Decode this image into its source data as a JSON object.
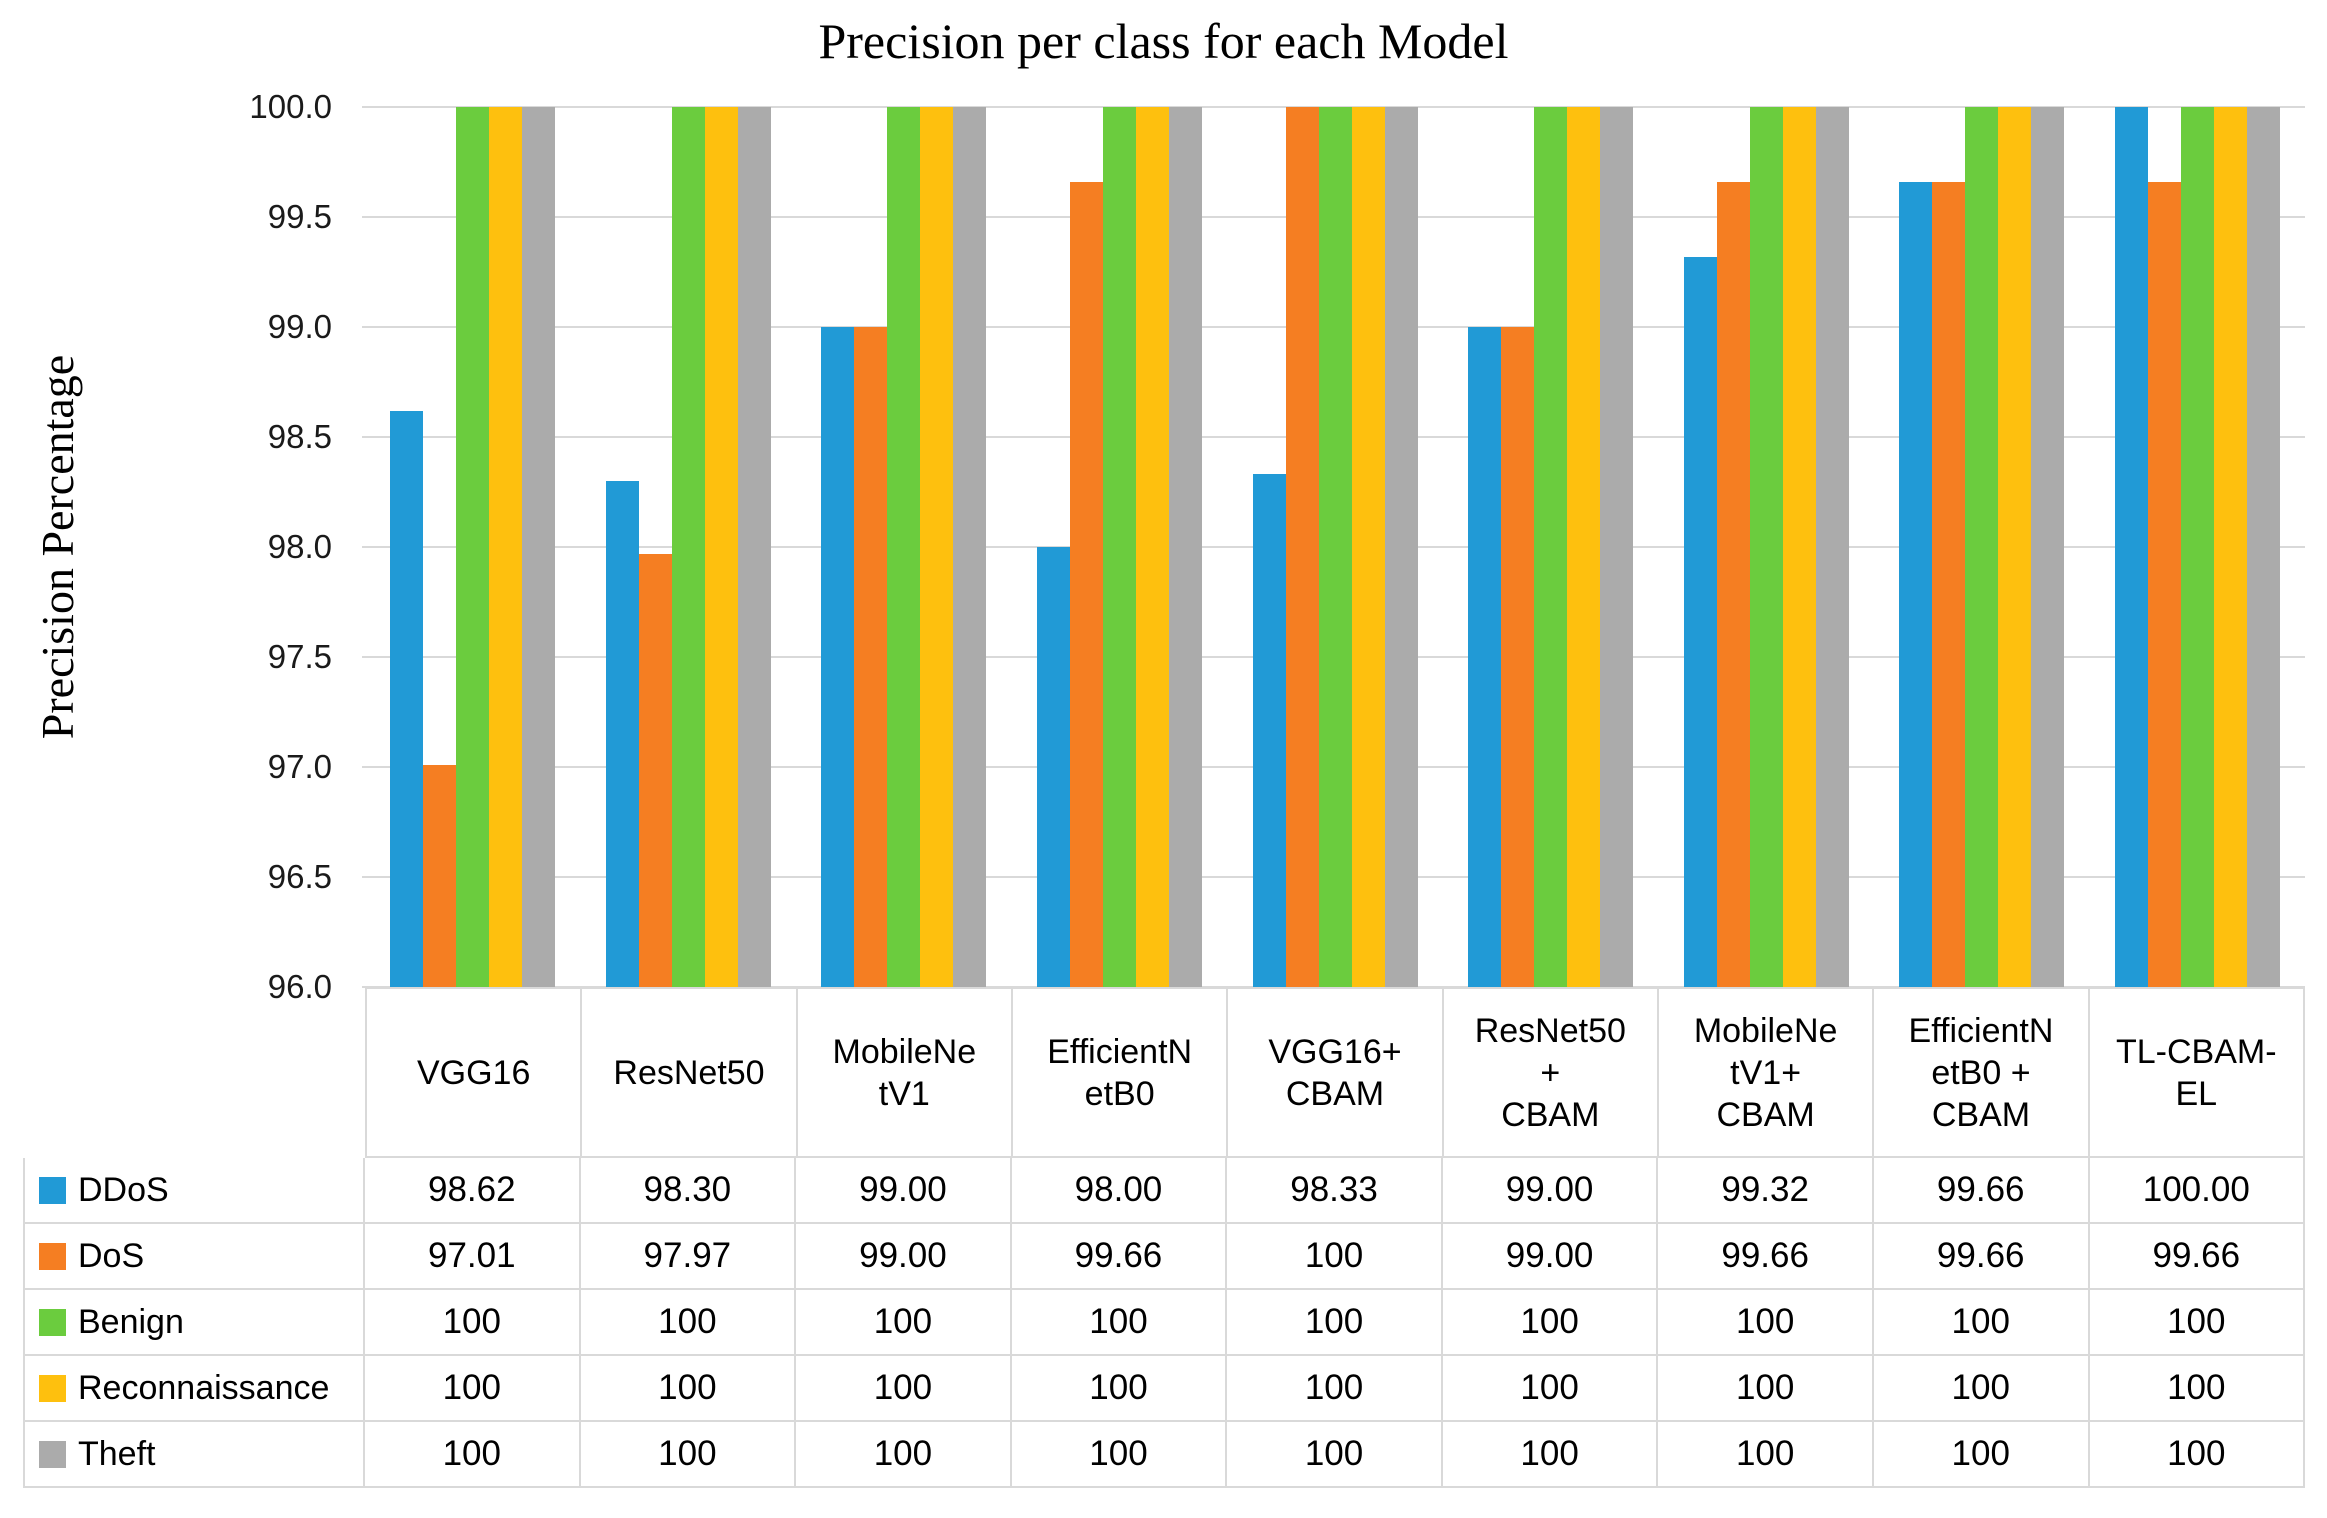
{
  "title": "Precision per class for each Model",
  "y_axis_title": "Precision Percentage",
  "chart_data": {
    "type": "bar",
    "title": "Precision per class for each Model",
    "xlabel": "",
    "ylabel": "Precision Percentage",
    "ylim": [
      96.0,
      100.0
    ],
    "ytick_step": 0.5,
    "ytick_labels": [
      "96.0",
      "96.5",
      "97.0",
      "97.5",
      "98.0",
      "98.5",
      "99.0",
      "99.5",
      "100.0"
    ],
    "grid": true,
    "legend_position": "table-left",
    "categories": [
      "VGG16",
      "ResNet50",
      "MobileNetV1",
      "EfficientNetB0",
      "VGG16+CBAM",
      "ResNet50 + CBAM",
      "MobileNetV1+ CBAM",
      "EfficientNetB0 + CBAM",
      "TL-CBAM-EL"
    ],
    "categories_display": [
      "VGG16",
      "ResNet50",
      "MobileNe\ntV1",
      "EfficientN\netB0",
      "VGG16+\nCBAM",
      "ResNet50\n+\nCBAM",
      "MobileNe\ntV1+\nCBAM",
      "EfficientN\netB0 +\nCBAM",
      "TL-CBAM-\nEL"
    ],
    "series": [
      {
        "name": "DDoS",
        "color": "#219AD6",
        "values": [
          98.62,
          98.3,
          99.0,
          98.0,
          98.33,
          99.0,
          99.32,
          99.66,
          100.0
        ],
        "display": [
          "98.62",
          "98.30",
          "99.00",
          "98.00",
          "98.33",
          "99.00",
          "99.32",
          "99.66",
          "100.00"
        ]
      },
      {
        "name": "DoS",
        "color": "#F57E22",
        "values": [
          97.01,
          97.97,
          99.0,
          99.66,
          100,
          99.0,
          99.66,
          99.66,
          99.66
        ],
        "display": [
          "97.01",
          "97.97",
          "99.00",
          "99.66",
          "100",
          "99.00",
          "99.66",
          "99.66",
          "99.66"
        ]
      },
      {
        "name": "Benign",
        "color": "#6BCC3E",
        "values": [
          100,
          100,
          100,
          100,
          100,
          100,
          100,
          100,
          100
        ],
        "display": [
          "100",
          "100",
          "100",
          "100",
          "100",
          "100",
          "100",
          "100",
          "100"
        ]
      },
      {
        "name": "Reconnaissance",
        "color": "#FEC00E",
        "values": [
          100,
          100,
          100,
          100,
          100,
          100,
          100,
          100,
          100
        ],
        "display": [
          "100",
          "100",
          "100",
          "100",
          "100",
          "100",
          "100",
          "100",
          "100"
        ]
      },
      {
        "name": "Theft",
        "color": "#ABABAB",
        "values": [
          100,
          100,
          100,
          100,
          100,
          100,
          100,
          100,
          100
        ],
        "display": [
          "100",
          "100",
          "100",
          "100",
          "100",
          "100",
          "100",
          "100",
          "100"
        ]
      }
    ],
    "colors": {
      "gridline": "#D9D9D9",
      "tick_text": "#1a1a1a",
      "table_text": "#000000"
    }
  }
}
